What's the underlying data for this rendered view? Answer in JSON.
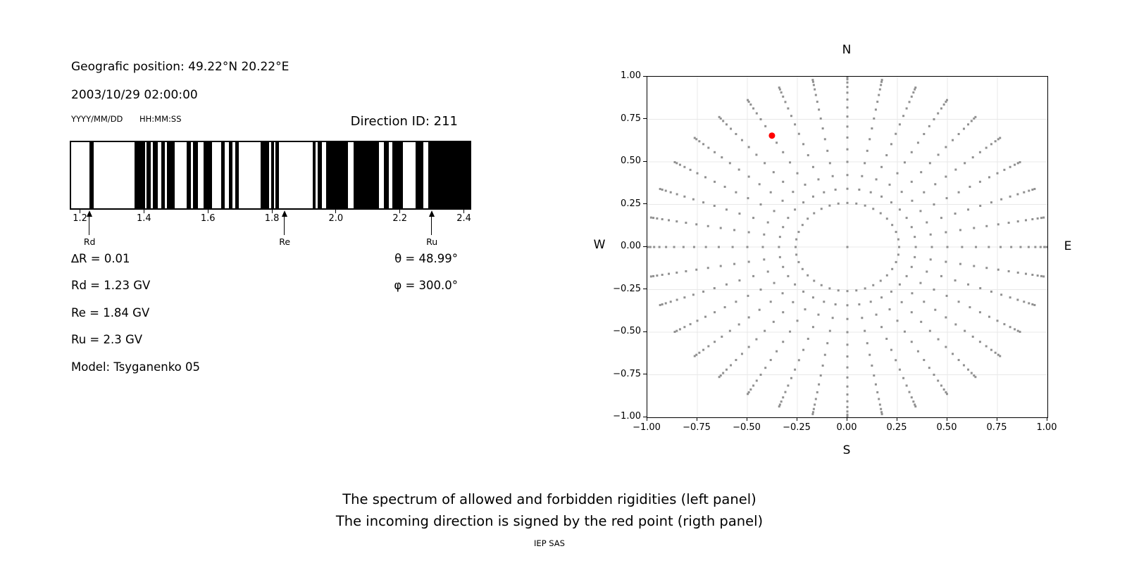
{
  "figure": {
    "header": {
      "position": "Geografic position: 49.22°N 20.22°E",
      "datetime": "2003/10/29 02:00:00",
      "date_hint": "YYYY/MM/DD",
      "time_hint": "HH:MM:SS",
      "direction_id": "Direction ID: 211"
    },
    "info": {
      "delta_r": "∆R = 0.01",
      "rd": "Rd = 1.23 GV",
      "re": "Re = 1.84 GV",
      "ru": "Ru = 2.3 GV",
      "model": "Model: Tsyganenko 05",
      "theta": "θ = 48.99°",
      "phi": "φ = 300.0°"
    },
    "captions": {
      "line1": "The spectrum of allowed and forbidden rigidities (left panel)",
      "line2": "The incoming direction is signed by the red point (rigth panel)",
      "credit": "IEP SAS"
    }
  },
  "chart_data": [
    {
      "type": "bar",
      "name": "rigidity-spectrum",
      "description": "Barcode of allowed (black) and forbidden (white) rigidities",
      "unit": "GV",
      "xlim": [
        1.168,
        2.423
      ],
      "xticks": [
        1.2,
        1.4,
        1.6,
        1.8,
        2.0,
        2.2,
        2.4
      ],
      "bar_color": "#000000",
      "background": "#ffffff",
      "allowed_intervals": [
        [
          1.225,
          1.24
        ],
        [
          1.368,
          1.4
        ],
        [
          1.406,
          1.418
        ],
        [
          1.426,
          1.44
        ],
        [
          1.451,
          1.462
        ],
        [
          1.47,
          1.493
        ],
        [
          1.531,
          1.544
        ],
        [
          1.552,
          1.568
        ],
        [
          1.585,
          1.611
        ],
        [
          1.64,
          1.652
        ],
        [
          1.664,
          1.676
        ],
        [
          1.684,
          1.696
        ],
        [
          1.765,
          1.79
        ],
        [
          1.797,
          1.806
        ],
        [
          1.81,
          1.823
        ],
        [
          1.928,
          1.938
        ],
        [
          1.945,
          1.958
        ],
        [
          1.971,
          2.04
        ],
        [
          2.057,
          2.136
        ],
        [
          2.152,
          2.167
        ],
        [
          2.18,
          2.213
        ],
        [
          2.253,
          2.277
        ],
        [
          2.292,
          2.423
        ]
      ],
      "markers": [
        {
          "label": "Rd",
          "value": 1.23
        },
        {
          "label": "Re",
          "value": 1.84
        },
        {
          "label": "Ru",
          "value": 2.3
        }
      ]
    },
    {
      "type": "scatter",
      "name": "incoming-direction-map",
      "xlim": [
        -1,
        1
      ],
      "ylim": [
        -1,
        1
      ],
      "xticks": [
        -1.0,
        -0.75,
        -0.5,
        -0.25,
        0.0,
        0.25,
        0.5,
        0.75,
        1.0
      ],
      "yticks": [
        -1.0,
        -0.75,
        -0.5,
        -0.25,
        0.0,
        0.25,
        0.5,
        0.75,
        1.0
      ],
      "grid": true,
      "grid_color": "#e8e8e8",
      "compass": {
        "top": "N",
        "bottom": "S",
        "left": "W",
        "right": "E"
      },
      "spokes": {
        "azimuth_start_deg": 0,
        "azimuth_step_deg": 10,
        "azimuth_count": 36,
        "zenith_min_deg": 15,
        "zenith_max_deg": 85,
        "zenith_step_deg": 5,
        "radius_rule": "sin(zenith)"
      },
      "has_center_point": true,
      "point_color": "#909090",
      "red_point": {
        "x": -0.377,
        "y": 0.654,
        "theta_deg": 48.99,
        "phi_deg": 300.0,
        "color": "#ff0000"
      }
    }
  ]
}
